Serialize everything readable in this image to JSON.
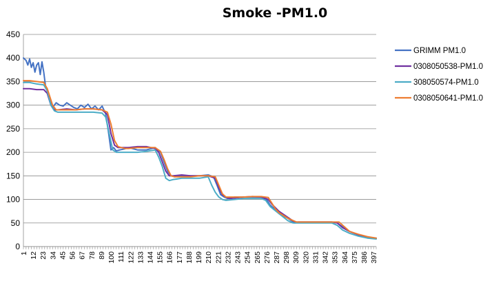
{
  "chart_data": {
    "type": "line",
    "title": "Smoke -PM1.0",
    "xlabel": "",
    "ylabel": "",
    "ylim": [
      0,
      450
    ],
    "yticks": [
      0,
      50,
      100,
      150,
      200,
      250,
      300,
      350,
      400,
      450
    ],
    "xlim": [
      1,
      400
    ],
    "xticks": [
      1,
      12,
      23,
      34,
      45,
      56,
      67,
      78,
      89,
      100,
      111,
      122,
      133,
      144,
      155,
      166,
      177,
      188,
      199,
      210,
      221,
      232,
      243,
      254,
      265,
      276,
      287,
      298,
      309,
      320,
      331,
      342,
      353,
      364,
      375,
      386,
      397
    ],
    "grid": "horizontal",
    "legend_position": "right",
    "series": [
      {
        "name": "GRIMM PM1.0",
        "color": "#4472c4",
        "x": [
          1,
          4,
          6,
          8,
          10,
          12,
          14,
          16,
          18,
          20,
          22,
          24,
          26,
          30,
          34,
          38,
          42,
          46,
          50,
          54,
          58,
          62,
          66,
          70,
          74,
          78,
          82,
          86,
          90,
          94,
          97,
          100,
          103,
          106,
          110,
          115,
          120,
          130,
          140,
          150,
          156,
          160,
          164,
          168,
          172,
          180,
          190,
          200,
          210,
          216,
          220,
          224,
          228,
          232,
          240,
          250,
          260,
          270,
          276,
          280,
          285,
          290,
          300,
          308,
          312,
          320,
          330,
          340,
          350,
          356,
          362,
          370,
          380,
          390,
          400
        ],
        "values": [
          400,
          395,
          385,
          398,
          380,
          390,
          370,
          385,
          390,
          365,
          392,
          370,
          340,
          320,
          295,
          305,
          300,
          298,
          305,
          300,
          295,
          292,
          300,
          295,
          302,
          292,
          298,
          290,
          298,
          282,
          245,
          205,
          210,
          203,
          205,
          207,
          210,
          205,
          205,
          210,
          200,
          180,
          160,
          150,
          148,
          150,
          150,
          150,
          152,
          148,
          130,
          110,
          105,
          102,
          105,
          105,
          105,
          105,
          100,
          88,
          80,
          70,
          60,
          50,
          52,
          52,
          52,
          52,
          52,
          50,
          42,
          32,
          25,
          20,
          18
        ]
      },
      {
        "name": "0308050538-PM1.0",
        "color": "#7030a0",
        "x": [
          1,
          8,
          16,
          24,
          28,
          32,
          36,
          40,
          50,
          60,
          70,
          80,
          90,
          96,
          100,
          104,
          108,
          112,
          120,
          130,
          140,
          150,
          154,
          158,
          162,
          166,
          170,
          180,
          190,
          200,
          210,
          218,
          222,
          226,
          230,
          234,
          240,
          250,
          260,
          270,
          278,
          282,
          290,
          300,
          308,
          315,
          330,
          340,
          350,
          356,
          362,
          370,
          380,
          390,
          400
        ],
        "values": [
          335,
          335,
          333,
          333,
          325,
          300,
          290,
          290,
          292,
          290,
          292,
          292,
          290,
          280,
          240,
          215,
          210,
          210,
          210,
          212,
          212,
          208,
          200,
          180,
          160,
          150,
          150,
          152,
          150,
          150,
          150,
          145,
          125,
          110,
          105,
          102,
          103,
          105,
          106,
          105,
          100,
          90,
          75,
          62,
          52,
          52,
          52,
          52,
          52,
          50,
          40,
          32,
          25,
          20,
          17
        ]
      },
      {
        "name": "308050574-PM1.0",
        "color": "#4bacc6",
        "x": [
          1,
          8,
          16,
          24,
          28,
          32,
          36,
          40,
          50,
          60,
          70,
          80,
          90,
          94,
          98,
          102,
          106,
          110,
          120,
          130,
          140,
          150,
          154,
          158,
          162,
          166,
          170,
          180,
          190,
          200,
          210,
          214,
          218,
          222,
          226,
          230,
          240,
          250,
          260,
          270,
          275,
          280,
          290,
          300,
          306,
          310,
          320,
          330,
          340,
          350,
          356,
          362,
          370,
          380,
          390,
          400
        ],
        "values": [
          348,
          348,
          345,
          343,
          330,
          300,
          288,
          285,
          285,
          285,
          285,
          285,
          283,
          275,
          240,
          205,
          200,
          200,
          200,
          200,
          202,
          205,
          190,
          170,
          145,
          140,
          142,
          145,
          145,
          145,
          148,
          130,
          115,
          105,
          100,
          98,
          100,
          102,
          102,
          102,
          98,
          85,
          70,
          55,
          50,
          50,
          50,
          50,
          50,
          50,
          45,
          35,
          28,
          22,
          18,
          16
        ]
      },
      {
        "name": "0308050641-PM1.0",
        "color": "#ed7d31",
        "x": [
          1,
          8,
          16,
          24,
          28,
          34,
          38,
          42,
          50,
          60,
          70,
          80,
          90,
          96,
          100,
          104,
          108,
          112,
          116,
          120,
          130,
          140,
          150,
          156,
          160,
          164,
          168,
          172,
          180,
          190,
          200,
          210,
          218,
          222,
          226,
          230,
          240,
          250,
          260,
          270,
          278,
          282,
          286,
          290,
          300,
          310,
          320,
          330,
          340,
          350,
          358,
          364,
          370,
          380,
          390,
          400
        ],
        "values": [
          352,
          352,
          350,
          348,
          335,
          300,
          290,
          290,
          290,
          290,
          292,
          292,
          290,
          285,
          260,
          225,
          212,
          210,
          208,
          208,
          210,
          210,
          210,
          202,
          185,
          165,
          150,
          148,
          148,
          148,
          150,
          150,
          148,
          130,
          112,
          105,
          105,
          105,
          106,
          106,
          104,
          92,
          80,
          72,
          60,
          52,
          52,
          52,
          52,
          52,
          52,
          42,
          32,
          26,
          21,
          18
        ]
      }
    ]
  }
}
